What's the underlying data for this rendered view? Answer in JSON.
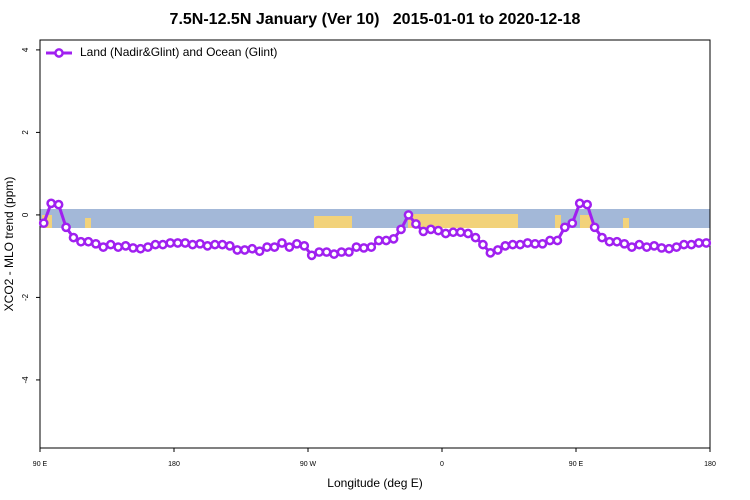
{
  "chart_data": {
    "type": "line",
    "title": "7.5N-12.5N January (Ver 10)   2015-01-01 to 2020-12-18",
    "x_label": "Longitude (deg E)",
    "y_label": "XCO2 - MLO trend (ppm)",
    "xlim": [
      90,
      540
    ],
    "xticks": [
      {
        "value": 90,
        "label": "90 E"
      },
      {
        "value": 180,
        "label": "180"
      },
      {
        "value": 270,
        "label": "90 W"
      },
      {
        "value": 360,
        "label": "0"
      },
      {
        "value": 450,
        "label": "90 E"
      },
      {
        "value": 540,
        "label": "180"
      }
    ],
    "ylim": [
      -5.65,
      4.24
    ],
    "yticks": [
      -4,
      -2,
      0,
      2,
      4
    ],
    "legend": "top-left",
    "x": [
      92.5,
      97.5,
      102.5,
      107.5,
      112.5,
      117.5,
      122.5,
      127.5,
      132.5,
      137.5,
      142.5,
      147.5,
      152.5,
      157.5,
      162.5,
      167.5,
      172.5,
      177.5,
      182.5,
      187.5,
      192.5,
      197.5,
      202.5,
      207.5,
      212.5,
      217.5,
      222.5,
      227.5,
      232.5,
      237.5,
      242.5,
      247.5,
      252.5,
      257.5,
      262.5,
      267.5,
      272.5,
      277.5,
      282.5,
      287.5,
      292.5,
      297.5,
      302.5,
      307.5,
      312.5,
      317.5,
      322.5,
      327.5,
      332.5,
      337.5,
      342.5,
      347.5,
      352.5,
      357.5,
      362.5,
      367.5,
      372.5,
      377.5,
      382.5,
      387.5,
      392.5,
      397.5,
      402.5,
      407.5,
      412.5,
      417.5,
      422.5,
      427.5,
      432.5,
      437.5,
      442.5,
      447.5,
      452.5,
      457.5,
      462.5,
      467.5,
      472.5,
      477.5,
      482.5,
      487.5,
      492.5,
      497.5,
      502.5,
      507.5,
      512.5,
      517.5,
      522.5,
      527.5,
      532.5,
      537.5
    ],
    "series": [
      {
        "name": "Land (Nadir&Glint) and Ocean (Glint)",
        "color": "#a020f0",
        "values": [
          -0.2,
          0.28,
          0.25,
          -0.3,
          -0.55,
          -0.65,
          -0.65,
          -0.7,
          -0.78,
          -0.72,
          -0.78,
          -0.75,
          -0.8,
          -0.82,
          -0.78,
          -0.72,
          -0.72,
          -0.68,
          -0.68,
          -0.68,
          -0.72,
          -0.7,
          -0.75,
          -0.72,
          -0.72,
          -0.75,
          -0.85,
          -0.85,
          -0.82,
          -0.88,
          -0.78,
          -0.78,
          -0.68,
          -0.78,
          -0.7,
          -0.75,
          -0.98,
          -0.9,
          -0.9,
          -0.95,
          -0.9,
          -0.9,
          -0.78,
          -0.8,
          -0.78,
          -0.62,
          -0.62,
          -0.58,
          -0.35,
          0.0,
          -0.22,
          -0.4,
          -0.35,
          -0.38,
          -0.45,
          -0.42,
          -0.42,
          -0.45,
          -0.55,
          -0.72,
          -0.92,
          -0.85,
          -0.75,
          -0.72,
          -0.72,
          -0.68,
          -0.7,
          -0.7,
          -0.62,
          -0.62,
          -0.3,
          -0.2,
          0.28,
          0.25,
          -0.3,
          -0.55,
          -0.65,
          -0.65,
          -0.7,
          -0.78,
          -0.72,
          -0.78,
          -0.75,
          -0.8,
          -0.82,
          -0.78,
          -0.72,
          -0.72,
          -0.68,
          -0.68
        ]
      }
    ]
  }
}
